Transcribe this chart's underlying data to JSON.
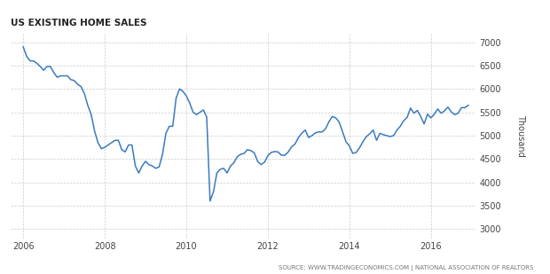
{
  "title": "US EXISTING HOME SALES",
  "source_text": "SOURCE: WWW.TRADINGECONOMICS.COM | NATIONAL ASSOCIATION OF REALTORS",
  "line_color": "#3a7bbf",
  "background_color": "#ffffff",
  "grid_color": "#cccccc",
  "ylabel_right": "Thousand",
  "ylim": [
    2800,
    7200
  ],
  "yticks": [
    3000,
    3500,
    4000,
    4500,
    5000,
    5500,
    6000,
    6500,
    7000
  ],
  "xlim": [
    2005.7,
    2017.1
  ],
  "xticks": [
    2006,
    2008,
    2010,
    2012,
    2014,
    2016
  ],
  "xtick_labels": [
    "2006",
    "2008",
    "2010",
    "2012",
    "2014",
    "2016"
  ],
  "title_color": "#222222",
  "source_color": "#777777",
  "dates": [
    2006.0,
    2006.083,
    2006.167,
    2006.25,
    2006.333,
    2006.417,
    2006.5,
    2006.583,
    2006.667,
    2006.75,
    2006.833,
    2006.917,
    2007.0,
    2007.083,
    2007.167,
    2007.25,
    2007.333,
    2007.417,
    2007.5,
    2007.583,
    2007.667,
    2007.75,
    2007.833,
    2007.917,
    2008.0,
    2008.083,
    2008.167,
    2008.25,
    2008.333,
    2008.417,
    2008.5,
    2008.583,
    2008.667,
    2008.75,
    2008.833,
    2008.917,
    2009.0,
    2009.083,
    2009.167,
    2009.25,
    2009.333,
    2009.417,
    2009.5,
    2009.583,
    2009.667,
    2009.75,
    2009.833,
    2009.917,
    2010.0,
    2010.083,
    2010.167,
    2010.25,
    2010.333,
    2010.417,
    2010.5,
    2010.583,
    2010.667,
    2010.75,
    2010.833,
    2010.917,
    2011.0,
    2011.083,
    2011.167,
    2011.25,
    2011.333,
    2011.417,
    2011.5,
    2011.583,
    2011.667,
    2011.75,
    2011.833,
    2011.917,
    2012.0,
    2012.083,
    2012.167,
    2012.25,
    2012.333,
    2012.417,
    2012.5,
    2012.583,
    2012.667,
    2012.75,
    2012.833,
    2012.917,
    2013.0,
    2013.083,
    2013.167,
    2013.25,
    2013.333,
    2013.417,
    2013.5,
    2013.583,
    2013.667,
    2013.75,
    2013.833,
    2013.917,
    2014.0,
    2014.083,
    2014.167,
    2014.25,
    2014.333,
    2014.417,
    2014.5,
    2014.583,
    2014.667,
    2014.75,
    2014.833,
    2014.917,
    2015.0,
    2015.083,
    2015.167,
    2015.25,
    2015.333,
    2015.417,
    2015.5,
    2015.583,
    2015.667,
    2015.75,
    2015.833,
    2015.917,
    2016.0,
    2016.083,
    2016.167,
    2016.25,
    2016.333,
    2016.417,
    2016.5,
    2016.583,
    2016.667,
    2016.75,
    2016.833,
    2016.917
  ],
  "values": [
    6900,
    6700,
    6600,
    6600,
    6550,
    6480,
    6400,
    6480,
    6480,
    6350,
    6250,
    6280,
    6280,
    6280,
    6200,
    6180,
    6100,
    6050,
    5900,
    5650,
    5450,
    5100,
    4850,
    4720,
    4750,
    4800,
    4850,
    4900,
    4900,
    4700,
    4650,
    4800,
    4800,
    4350,
    4200,
    4350,
    4450,
    4380,
    4350,
    4300,
    4330,
    4600,
    5050,
    5200,
    5200,
    5800,
    6000,
    5950,
    5850,
    5700,
    5500,
    5450,
    5500,
    5550,
    5400,
    3600,
    3800,
    4200,
    4280,
    4300,
    4200,
    4350,
    4420,
    4550,
    4600,
    4620,
    4700,
    4680,
    4630,
    4450,
    4380,
    4430,
    4570,
    4640,
    4660,
    4650,
    4580,
    4580,
    4650,
    4760,
    4820,
    4960,
    5050,
    5120,
    4960,
    5000,
    5060,
    5080,
    5080,
    5150,
    5300,
    5410,
    5380,
    5290,
    5080,
    4870,
    4780,
    4620,
    4640,
    4740,
    4870,
    4980,
    5040,
    5120,
    4900,
    5050,
    5020,
    5000,
    4980,
    5000,
    5120,
    5200,
    5320,
    5390,
    5590,
    5480,
    5540,
    5410,
    5250,
    5460,
    5380,
    5460,
    5570,
    5480,
    5530,
    5610,
    5510,
    5450,
    5480,
    5600,
    5600,
    5650
  ]
}
